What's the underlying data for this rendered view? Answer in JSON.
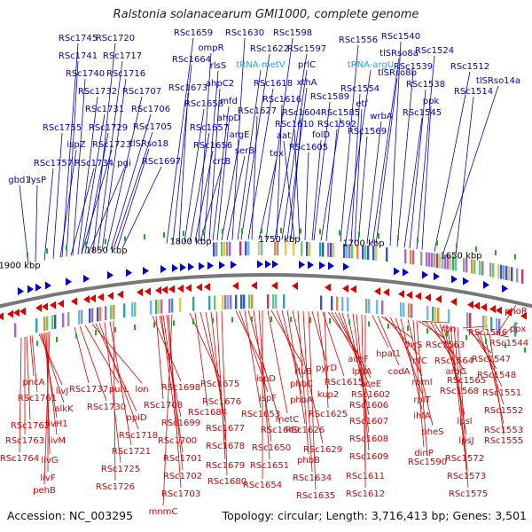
{
  "title": "Ralstonia solanacearum GMI1000, complete genome",
  "footer": {
    "accession": "Accession: NC_003295",
    "summary": "Topology: circular; Length: 3,716,413 bp; Genes: 3,501"
  },
  "colors": {
    "forward": "#0000cc",
    "reverse": "#dd0000",
    "rna": "#22aacc",
    "backbone": "#777777",
    "tick_text": "#000000"
  },
  "ticks": [
    "1900 kbp",
    "1850 kbp",
    "1800 kbp",
    "1750 kbp",
    "1700 kbp",
    "1650 kbp"
  ],
  "top_labels": [
    "gbd1",
    "lysP",
    "RSc1757",
    "RSc1755",
    "ispZ",
    "RSc1734",
    "RSc1723",
    "pgi",
    "RSc1745",
    "RSc1741",
    "RSc1740",
    "RSc1732",
    "RSc1731",
    "RSc1729",
    "RSc1720",
    "RSc1717",
    "RSc1716",
    "RSc1707",
    "RSc1706",
    "RSc1705",
    "tlSRso18",
    "RSc1697",
    "RSc1659",
    "RSc1664",
    "RSc1673",
    "RSc1658",
    "RSc1657",
    "RSc1656",
    "crtB",
    "ompR",
    "rlsS",
    "ahpC2",
    "mfd",
    "ahpD",
    "argE",
    "serB",
    "RSc1630",
    "tRNA-metV",
    "RSc1622",
    "RSc1618",
    "RSc1627",
    "tex",
    "RSc1598",
    "RSc1597",
    "prlC",
    "xthA",
    "RSc1616",
    "RSc1604",
    "RSc1610",
    "aat",
    "RSc1605",
    "RSc1589",
    "RSc1585",
    "RSc1592",
    "folD",
    "RSc1556",
    "tRNA-argU",
    "RSc1554",
    "etf",
    "tlSRso8a",
    "tlSRso8b",
    "wrbA",
    "RSc1569",
    "RSc1540",
    "RSc1539",
    "RSc1538",
    "RSc1545",
    "RSc1524",
    "ppk",
    "RSc1512",
    "tlSRso14a",
    "RSc1514"
  ],
  "bottom_labels": [
    "pncA",
    "RSc1761",
    "RSc1762",
    "RSc1763",
    "RSc1764",
    "livJ",
    "alkK",
    "livH1",
    "livM",
    "livG",
    "livF",
    "pehB",
    "RSc1737",
    "RSc1730",
    "purL",
    "lon",
    "ppiD",
    "RSc1718",
    "RSc1725",
    "RSc1721",
    "RSc1726",
    "RSc1698",
    "RSc1708",
    "RSc1699",
    "RSc1700",
    "RSc1701",
    "RSc1702",
    "RSc1703",
    "mnmC",
    "RSc1675",
    "RSc1684",
    "RSc1676",
    "RSc1677",
    "RSc1678",
    "RSc1679",
    "RSc1680",
    "ispD",
    "ispF",
    "RSc1653",
    "RSc1649",
    "RSc1650",
    "RSc1651",
    "RSc1654",
    "metC",
    "rluB",
    "phbC",
    "phbA",
    "RSc1626",
    "RSc1629",
    "phbB",
    "RSc1634",
    "RSc1635",
    "pyrD",
    "kup2",
    "RSc1615",
    "RSc1625",
    "aceF",
    "lpdA",
    "aceE",
    "RSc1602",
    "RSc1606",
    "RSc1607",
    "RSc1608",
    "RSc1609",
    "RSc1611",
    "RSc1612",
    "hpaI1",
    "codA",
    "thrS",
    "infC",
    "rpmI",
    "rplT",
    "ihfA",
    "pheS",
    "dinP",
    "RSc1590",
    "RSc1563",
    "rbn",
    "RSc1564",
    "aroC",
    "RSc1565",
    "RSc1568",
    "lpsI",
    "lpsJ",
    "RSc1572",
    "RSc1573",
    "RSc1575",
    "RSc1546",
    "RSc1547",
    "RSc1548",
    "RSc1551",
    "RSc1552",
    "RSc1553",
    "RSc1555",
    "phoR",
    "ppx",
    "RSc1544"
  ]
}
